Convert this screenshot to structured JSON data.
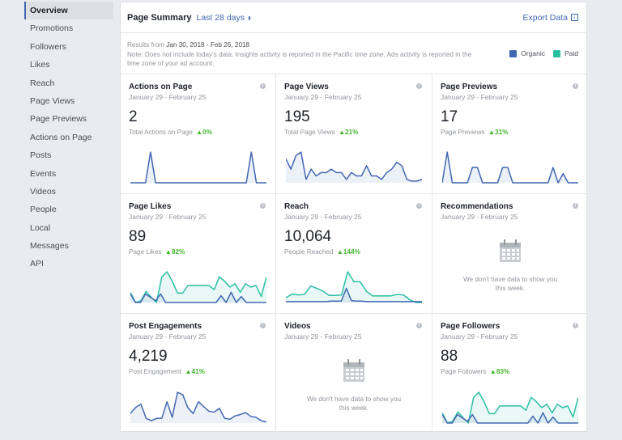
{
  "sidebar": {
    "items": [
      {
        "label": "Overview",
        "active": true
      },
      {
        "label": "Promotions"
      },
      {
        "label": "Followers"
      },
      {
        "label": "Likes"
      },
      {
        "label": "Reach"
      },
      {
        "label": "Page Views"
      },
      {
        "label": "Page Previews"
      },
      {
        "label": "Actions on Page"
      },
      {
        "label": "Posts"
      },
      {
        "label": "Events"
      },
      {
        "label": "Videos"
      },
      {
        "label": "People"
      },
      {
        "label": "Local"
      },
      {
        "label": "Messages"
      },
      {
        "label": "API"
      }
    ]
  },
  "summary": {
    "title": "Page Summary",
    "range": "Last 28 days",
    "range_caret": "⬍",
    "export_label": "Export Data",
    "results_prefix": "Results from ",
    "results_range": "Jan 30, 2018 - Feb 26, 2018",
    "note": "Note: Does not include today's data. Insights activity is reported in the Pacific time zone. Ads activity is reported in the time zone of your ad account.",
    "legend": [
      {
        "label": "Organic",
        "color": "#4267b2"
      },
      {
        "label": "Paid",
        "color": "#2bbfa4"
      }
    ]
  },
  "colors": {
    "organic": "#4267b2",
    "paid": "#2bbfa4",
    "positive": "#42b72a"
  },
  "cards": [
    {
      "title": "Actions on Page",
      "date": "January 29 - February 25",
      "value": "2",
      "label": "Total Actions on Page",
      "change": "▲0%"
    },
    {
      "title": "Page Views",
      "date": "January 29 - February 25",
      "value": "195",
      "label": "Total Page Views",
      "change": "▲21%"
    },
    {
      "title": "Page Previews",
      "date": "January 29 - February 25",
      "value": "17",
      "label": "Page Previews",
      "change": "▲31%"
    },
    {
      "title": "Page Likes",
      "date": "January 29 - February 25",
      "value": "89",
      "label": "Page Likes",
      "change": "▲82%"
    },
    {
      "title": "Reach",
      "date": "January 29 - February 25",
      "value": "10,064",
      "label": "People Reached",
      "change": "▲144%"
    },
    {
      "title": "Recommendations",
      "date": "January 29 - February 25",
      "empty": "We don't have data to show you this week."
    },
    {
      "title": "Post Engagements",
      "date": "January 29 - February 25",
      "value": "4,219",
      "label": "Post Engagement",
      "change": "▲41%"
    },
    {
      "title": "Videos",
      "date": "January 29 - February 25",
      "empty": "We don't have data to show you this week."
    },
    {
      "title": "Page Followers",
      "date": "January 29 - February 25",
      "value": "88",
      "label": "Page Followers",
      "change": "▲83%"
    }
  ],
  "sparklines": {
    "actions": {
      "organic": [
        0,
        0,
        0,
        0,
        1,
        0,
        0,
        0,
        0,
        0,
        0,
        0,
        0,
        0,
        0,
        0,
        0,
        0,
        0,
        0,
        0,
        0,
        0,
        0,
        1,
        0,
        0,
        0
      ]
    },
    "views": {
      "organic": [
        7,
        4,
        8,
        9,
        1,
        4,
        2,
        3,
        3,
        4,
        3,
        3,
        1,
        3,
        2,
        2,
        5,
        2,
        2,
        1,
        3,
        4,
        6,
        5,
        1,
        0.5,
        0.5,
        1
      ]
    },
    "previews": {
      "organic": [
        0,
        2,
        0,
        0,
        0,
        0,
        1,
        1,
        0,
        0,
        0,
        0,
        1,
        1,
        0,
        0,
        0,
        0,
        0,
        0,
        0,
        0,
        1,
        0,
        0.6,
        0,
        0,
        0
      ]
    },
    "likes": {
      "organic": [
        1,
        0,
        0,
        1,
        0.6,
        0.2,
        1,
        0,
        0,
        0,
        0,
        0,
        0,
        0,
        0,
        0,
        0,
        0,
        0.8,
        0,
        1.2,
        0,
        0.7,
        0,
        0,
        0,
        0,
        0
      ],
      "paid": [
        1.2,
        0,
        0.2,
        1.3,
        0.6,
        0,
        3,
        3.6,
        2.5,
        1.1,
        1.1,
        2,
        2,
        2,
        2,
        2,
        1.5,
        3,
        2.5,
        1.8,
        2.2,
        1.2,
        2.2,
        1.8,
        2,
        0.7,
        3
      ]
    },
    "reach": {
      "organic": [
        0.2,
        0.2,
        0.2,
        0.2,
        0.2,
        0.2,
        0.2,
        0.2,
        0.2,
        0.3,
        0.3,
        0.3,
        3,
        0.4,
        0.3,
        0.3,
        0.2,
        0.2,
        0.2,
        0.2,
        0.2,
        0.2,
        0.2,
        0.2,
        0.2,
        0.2,
        0.2,
        0.2
      ],
      "paid": [
        1,
        1.8,
        1.6,
        1.7,
        3.5,
        3,
        2.4,
        1.5,
        1.5,
        1.6,
        6.5,
        4.4,
        4.4,
        2.4,
        1.4,
        1.4,
        1.4,
        1.4,
        1.7,
        1.6,
        0.6,
        0,
        0
      ]
    },
    "engagement": {
      "organic": [
        2,
        3.3,
        4,
        1,
        0.5,
        1,
        1,
        4.5,
        1.2,
        6.5,
        6,
        3.2,
        2,
        4.5,
        3.5,
        2.5,
        2.3,
        3.1,
        1,
        0.8,
        1.5,
        1.8,
        2.2,
        1.4,
        1.2,
        0.5,
        0.2
      ]
    },
    "followers": {
      "organic": [
        1,
        0,
        0,
        1,
        0.6,
        0.2,
        1,
        0,
        0,
        0,
        0,
        0,
        0,
        0,
        0,
        0,
        0,
        0,
        0.8,
        0,
        1.2,
        0,
        0.7,
        0,
        0,
        0,
        0,
        0
      ],
      "paid": [
        1.2,
        0,
        0.2,
        1.3,
        0.6,
        0,
        3,
        3.6,
        2.5,
        1.1,
        1.1,
        2,
        2,
        2,
        2,
        2,
        1.5,
        3,
        2.5,
        1.8,
        2.2,
        1.2,
        2.2,
        1.8,
        2,
        0.7,
        3
      ]
    }
  }
}
